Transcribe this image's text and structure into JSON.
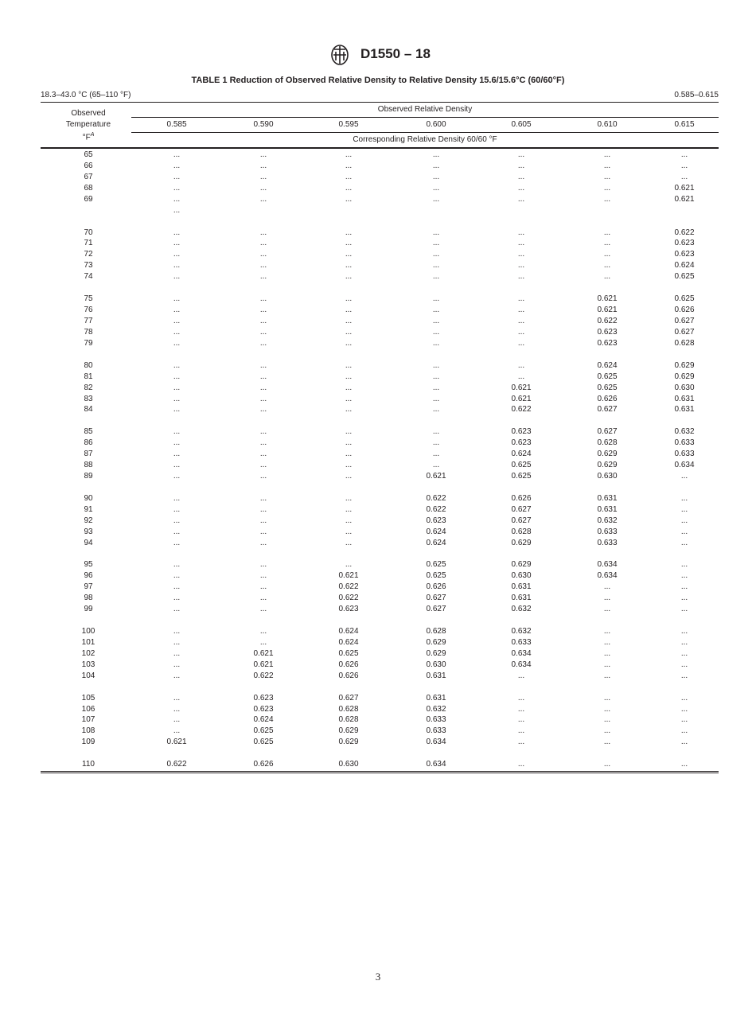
{
  "header": {
    "doc_id": "D1550 – 18",
    "logo": "ASTM"
  },
  "table": {
    "title": "TABLE 1 Reduction of Observed Relative Density to Relative Density 15.6/15.6°C (60/60°F)",
    "range_left": "18.3–43.0 °C (65–110 °F)",
    "range_right": "0.585–0.615",
    "stub_header": [
      "Observed",
      "Temperature",
      "°F",
      "A"
    ],
    "group_header": "Observed Relative Density",
    "columns": [
      "0.585",
      "0.590",
      "0.595",
      "0.600",
      "0.605",
      "0.610",
      "0.615"
    ],
    "sub_header": "Corresponding Relative Density 60/60 °F",
    "groups": [
      [
        [
          "65",
          "...",
          "...",
          "...",
          "...",
          "...",
          "...",
          "..."
        ],
        [
          "66",
          "...",
          "...",
          "...",
          "...",
          "...",
          "...",
          "..."
        ],
        [
          "67",
          "...",
          "...",
          "...",
          "...",
          "...",
          "...",
          "..."
        ],
        [
          "68",
          "...",
          "...",
          "...",
          "...",
          "...",
          "...",
          "0.621"
        ],
        [
          "69",
          "...",
          "...",
          "...",
          "...",
          "...",
          "...",
          "0.621"
        ],
        [
          "",
          "...",
          "",
          "",
          "",
          "",
          "",
          ""
        ]
      ],
      [
        [
          "70",
          "...",
          "...",
          "...",
          "...",
          "...",
          "...",
          "0.622"
        ],
        [
          "71",
          "...",
          "...",
          "...",
          "...",
          "...",
          "...",
          "0.623"
        ],
        [
          "72",
          "...",
          "...",
          "...",
          "...",
          "...",
          "...",
          "0.623"
        ],
        [
          "73",
          "...",
          "...",
          "...",
          "...",
          "...",
          "...",
          "0.624"
        ],
        [
          "74",
          "...",
          "...",
          "...",
          "...",
          "...",
          "...",
          "0.625"
        ]
      ],
      [
        [
          "75",
          "...",
          "...",
          "...",
          "...",
          "...",
          "0.621",
          "0.625"
        ],
        [
          "76",
          "...",
          "...",
          "...",
          "...",
          "...",
          "0.621",
          "0.626"
        ],
        [
          "77",
          "...",
          "...",
          "...",
          "...",
          "...",
          "0.622",
          "0.627"
        ],
        [
          "78",
          "...",
          "...",
          "...",
          "...",
          "...",
          "0.623",
          "0.627"
        ],
        [
          "79",
          "...",
          "...",
          "...",
          "...",
          "...",
          "0.623",
          "0.628"
        ]
      ],
      [
        [
          "80",
          "...",
          "...",
          "...",
          "...",
          "...",
          "0.624",
          "0.629"
        ],
        [
          "81",
          "...",
          "...",
          "...",
          "...",
          "...",
          "0.625",
          "0.629"
        ],
        [
          "82",
          "...",
          "...",
          "...",
          "...",
          "0.621",
          "0.625",
          "0.630"
        ],
        [
          "83",
          "...",
          "...",
          "...",
          "...",
          "0.621",
          "0.626",
          "0.631"
        ],
        [
          "84",
          "...",
          "...",
          "...",
          "...",
          "0.622",
          "0.627",
          "0.631"
        ]
      ],
      [
        [
          "85",
          "...",
          "...",
          "...",
          "...",
          "0.623",
          "0.627",
          "0.632"
        ],
        [
          "86",
          "...",
          "...",
          "...",
          "...",
          "0.623",
          "0.628",
          "0.633"
        ],
        [
          "87",
          "...",
          "...",
          "...",
          "...",
          "0.624",
          "0.629",
          "0.633"
        ],
        [
          "88",
          "...",
          "...",
          "...",
          "...",
          "0.625",
          "0.629",
          "0.634"
        ],
        [
          "89",
          "...",
          "...",
          "...",
          "0.621",
          "0.625",
          "0.630",
          "..."
        ]
      ],
      [
        [
          "90",
          "...",
          "...",
          "...",
          "0.622",
          "0.626",
          "0.631",
          "..."
        ],
        [
          "91",
          "...",
          "...",
          "...",
          "0.622",
          "0.627",
          "0.631",
          "..."
        ],
        [
          "92",
          "...",
          "...",
          "...",
          "0.623",
          "0.627",
          "0.632",
          "..."
        ],
        [
          "93",
          "...",
          "...",
          "...",
          "0.624",
          "0.628",
          "0.633",
          "..."
        ],
        [
          "94",
          "...",
          "...",
          "...",
          "0.624",
          "0.629",
          "0.633",
          "..."
        ]
      ],
      [
        [
          "95",
          "...",
          "...",
          "...",
          "0.625",
          "0.629",
          "0.634",
          "..."
        ],
        [
          "96",
          "...",
          "...",
          "0.621",
          "0.625",
          "0.630",
          "0.634",
          "..."
        ],
        [
          "97",
          "...",
          "...",
          "0.622",
          "0.626",
          "0.631",
          "...",
          "..."
        ],
        [
          "98",
          "...",
          "...",
          "0.622",
          "0.627",
          "0.631",
          "...",
          "..."
        ],
        [
          "99",
          "...",
          "...",
          "0.623",
          "0.627",
          "0.632",
          "...",
          "..."
        ]
      ],
      [
        [
          "100",
          "...",
          "...",
          "0.624",
          "0.628",
          "0.632",
          "...",
          "..."
        ],
        [
          "101",
          "...",
          "...",
          "0.624",
          "0.629",
          "0.633",
          "...",
          "..."
        ],
        [
          "102",
          "...",
          "0.621",
          "0.625",
          "0.629",
          "0.634",
          "...",
          "..."
        ],
        [
          "103",
          "...",
          "0.621",
          "0.626",
          "0.630",
          "0.634",
          "...",
          "..."
        ],
        [
          "104",
          "...",
          "0.622",
          "0.626",
          "0.631",
          "...",
          "...",
          "..."
        ]
      ],
      [
        [
          "105",
          "...",
          "0.623",
          "0.627",
          "0.631",
          "...",
          "...",
          "..."
        ],
        [
          "106",
          "...",
          "0.623",
          "0.628",
          "0.632",
          "...",
          "...",
          "..."
        ],
        [
          "107",
          "...",
          "0.624",
          "0.628",
          "0.633",
          "...",
          "...",
          "..."
        ],
        [
          "108",
          "...",
          "0.625",
          "0.629",
          "0.633",
          "...",
          "...",
          "..."
        ],
        [
          "109",
          "0.621",
          "0.625",
          "0.629",
          "0.634",
          "...",
          "...",
          "..."
        ]
      ],
      [
        [
          "110",
          "0.622",
          "0.626",
          "0.630",
          "0.634",
          "...",
          "...",
          "..."
        ]
      ]
    ]
  },
  "footer": {
    "page_number": "3"
  }
}
